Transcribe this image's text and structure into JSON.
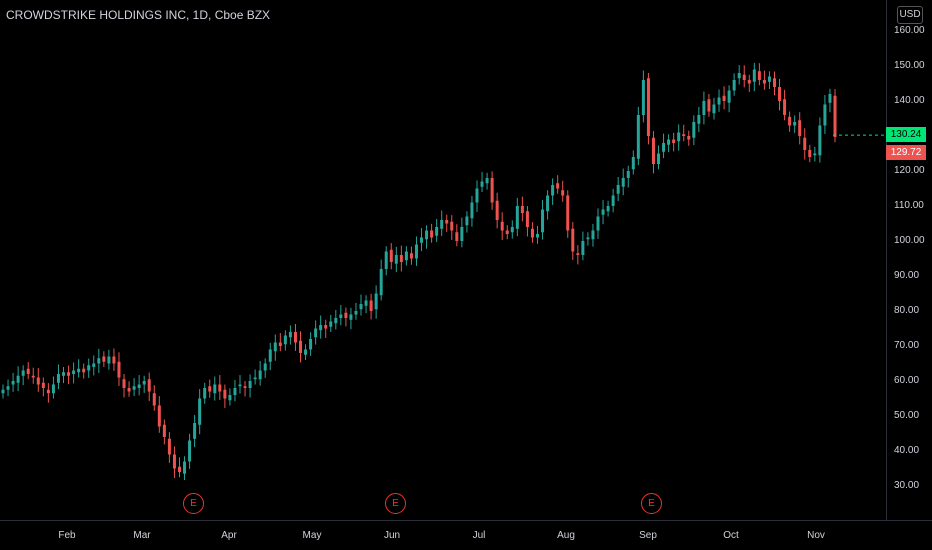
{
  "header": {
    "title": "CROWDSTRIKE HOLDINGS INC, 1D, Cboe BZX",
    "currency": "USD"
  },
  "price_axis": [
    "160.00",
    "150.00",
    "140.00",
    "130.00",
    "120.00",
    "110.00",
    "100.00",
    "90.00",
    "80.00",
    "70.00",
    "60.00",
    "50.00",
    "40.00",
    "30.00"
  ],
  "time_axis": [
    "Feb",
    "Mar",
    "Apr",
    "May",
    "Jun",
    "Jul",
    "Aug",
    "Sep",
    "Oct",
    "Nov"
  ],
  "last_price": {
    "green": "130.24",
    "red": "129.72"
  },
  "earnings": [
    {
      "label": "E"
    },
    {
      "label": "E"
    },
    {
      "label": "E"
    }
  ],
  "colors": {
    "up": "#26a69a",
    "down": "#ef5350",
    "bg": "#000000",
    "last_green": "#00e676",
    "last_red": "#ef5350"
  },
  "chart_data": {
    "type": "candlestick",
    "title": "CROWDSTRIKE HOLDINGS INC, 1D, Cboe BZX",
    "ylim": [
      30,
      160
    ],
    "x_ticks": [
      "Feb",
      "Mar",
      "Apr",
      "May",
      "Jun",
      "Jul",
      "Aug",
      "Sep",
      "Oct",
      "Nov"
    ],
    "close": [
      57.5,
      58.5,
      60.0,
      61.5,
      63.0,
      62.0,
      61.0,
      59.0,
      58.0,
      56.5,
      59.0,
      62.0,
      62.5,
      61.5,
      63.0,
      63.5,
      62.5,
      64.5,
      65.0,
      66.5,
      65.5,
      67.0,
      65.0,
      61.0,
      58.0,
      57.0,
      58.5,
      59.0,
      60.0,
      57.0,
      53.0,
      47.0,
      44.0,
      39.0,
      35.0,
      34.0,
      37.0,
      43.0,
      48.0,
      55.0,
      58.0,
      57.0,
      59.0,
      57.0,
      55.0,
      56.0,
      58.0,
      59.0,
      58.0,
      60.0,
      61.0,
      63.0,
      65.0,
      69.0,
      71.0,
      70.0,
      73.0,
      74.0,
      71.0,
      68.0,
      69.0,
      72.0,
      75.0,
      76.0,
      75.0,
      77.0,
      78.0,
      79.0,
      78.0,
      79.0,
      80.0,
      82.0,
      83.0,
      80.0,
      85.0,
      92.0,
      97.0,
      94.0,
      96.0,
      94.0,
      97.0,
      95.0,
      99.0,
      101.0,
      103.0,
      101.0,
      104.0,
      106.0,
      105.0,
      103.0,
      100.0,
      104.0,
      107.0,
      111.0,
      115.0,
      117.0,
      118.0,
      111.0,
      106.0,
      103.0,
      102.0,
      104.0,
      110.0,
      108.0,
      104.0,
      101.0,
      102.0,
      109.0,
      113.0,
      116.0,
      115.0,
      113.0,
      103.0,
      97.0,
      96.0,
      100.0,
      101.0,
      103.0,
      107.0,
      109.0,
      110.0,
      113.0,
      116.0,
      118.0,
      120.0,
      124.0,
      136.0,
      146.0,
      130.0,
      122.0,
      125.0,
      128.0,
      129.0,
      128.0,
      131.0,
      130.0,
      129.0,
      134.0,
      136.0,
      140.0,
      137.0,
      139.0,
      141.0,
      140.0,
      143.0,
      146.0,
      148.0,
      146.0,
      145.0,
      149.0,
      146.0,
      145.0,
      147.0,
      144.0,
      140.0,
      136.0,
      133.0,
      134.0,
      130.0,
      126.0,
      124.0,
      125.0,
      133.0,
      139.0,
      142.0,
      129.72
    ]
  }
}
